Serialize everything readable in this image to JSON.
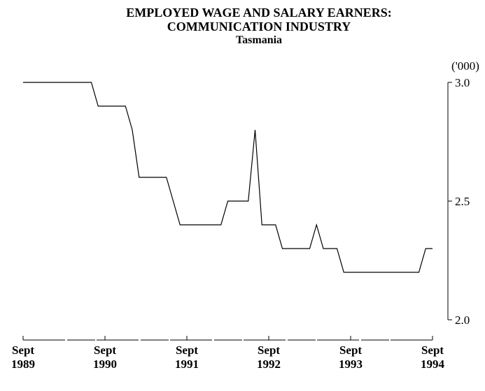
{
  "chart_data": {
    "type": "line",
    "title": "EMPLOYED WAGE AND SALARY EARNERS: COMMUNICATION INDUSTRY",
    "subtitle": "Tasmania",
    "y_axis_label": "('000)",
    "categories": [
      "Sept 1989",
      null,
      null,
      null,
      null,
      null,
      null,
      null,
      null,
      null,
      null,
      null,
      "Sept 1990",
      null,
      null,
      null,
      null,
      null,
      null,
      null,
      null,
      null,
      null,
      null,
      "Sept 1991",
      null,
      null,
      null,
      null,
      null,
      null,
      null,
      null,
      null,
      null,
      null,
      "Sept 1992",
      null,
      null,
      null,
      null,
      null,
      null,
      null,
      null,
      null,
      null,
      null,
      "Sept 1993",
      null,
      null,
      null,
      null,
      null,
      null,
      null,
      null,
      null,
      null,
      null,
      "Sept 1994"
    ],
    "values": [
      3.0,
      3.0,
      3.0,
      3.0,
      3.0,
      3.0,
      3.0,
      3.0,
      3.0,
      3.0,
      3.0,
      2.9,
      2.9,
      2.9,
      2.9,
      2.9,
      2.8,
      2.6,
      2.6,
      2.6,
      2.6,
      2.6,
      2.5,
      2.4,
      2.4,
      2.4,
      2.4,
      2.4,
      2.4,
      2.4,
      2.5,
      2.5,
      2.5,
      2.5,
      2.8,
      2.4,
      2.4,
      2.4,
      2.3,
      2.3,
      2.3,
      2.3,
      2.3,
      2.4,
      2.3,
      2.3,
      2.3,
      2.2,
      2.2,
      2.2,
      2.2,
      2.2,
      2.2,
      2.2,
      2.2,
      2.2,
      2.2,
      2.2,
      2.2,
      2.3,
      2.3
    ],
    "color": "#000000",
    "ylim": [
      2.0,
      3.0
    ],
    "yticks": [
      {
        "value": 2.0,
        "label": "2.0"
      },
      {
        "value": 2.5,
        "label": "2.5"
      },
      {
        "value": 3.0,
        "label": "3.0"
      }
    ],
    "y_axis_side": "right",
    "grid": false
  }
}
